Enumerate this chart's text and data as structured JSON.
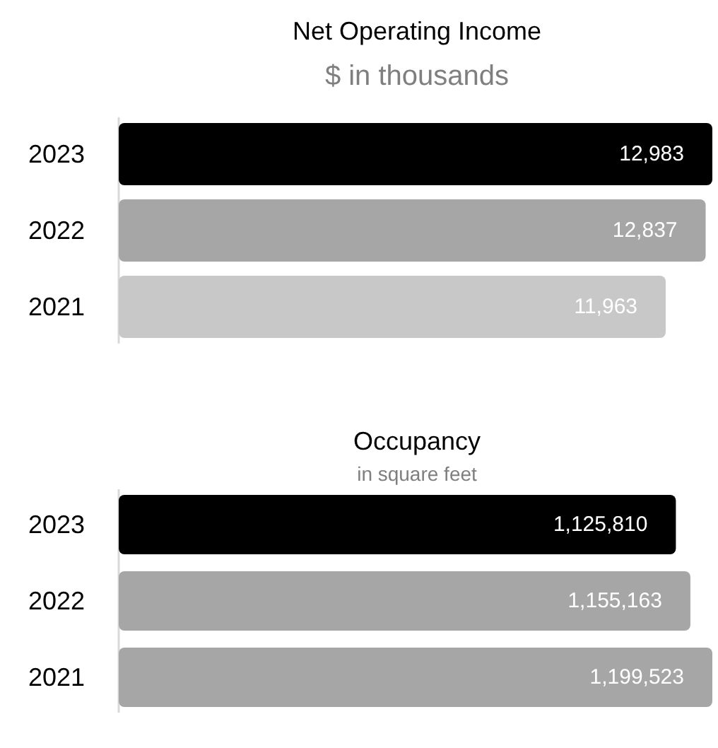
{
  "chart_data": [
    {
      "type": "bar",
      "orientation": "horizontal",
      "title": "Net Operating Income",
      "subtitle": "$ in thousands",
      "categories": [
        "2023",
        "2022",
        "2021"
      ],
      "values": [
        12983,
        12837,
        11963
      ],
      "colors": [
        "#000000",
        "#a6a6a6",
        "#c8c8c8"
      ],
      "value_labels": [
        "12,983",
        "12,837",
        "11,963"
      ]
    },
    {
      "type": "bar",
      "orientation": "horizontal",
      "title": "Occupancy",
      "subtitle": "in square feet",
      "categories": [
        "2023",
        "2022",
        "2021"
      ],
      "values": [
        1125810,
        1155163,
        1199523
      ],
      "colors": [
        "#000000",
        "#a6a6a6",
        "#a6a6a6"
      ],
      "value_labels": [
        "1,125,810",
        "1,155,163",
        "1,199,523"
      ]
    }
  ]
}
